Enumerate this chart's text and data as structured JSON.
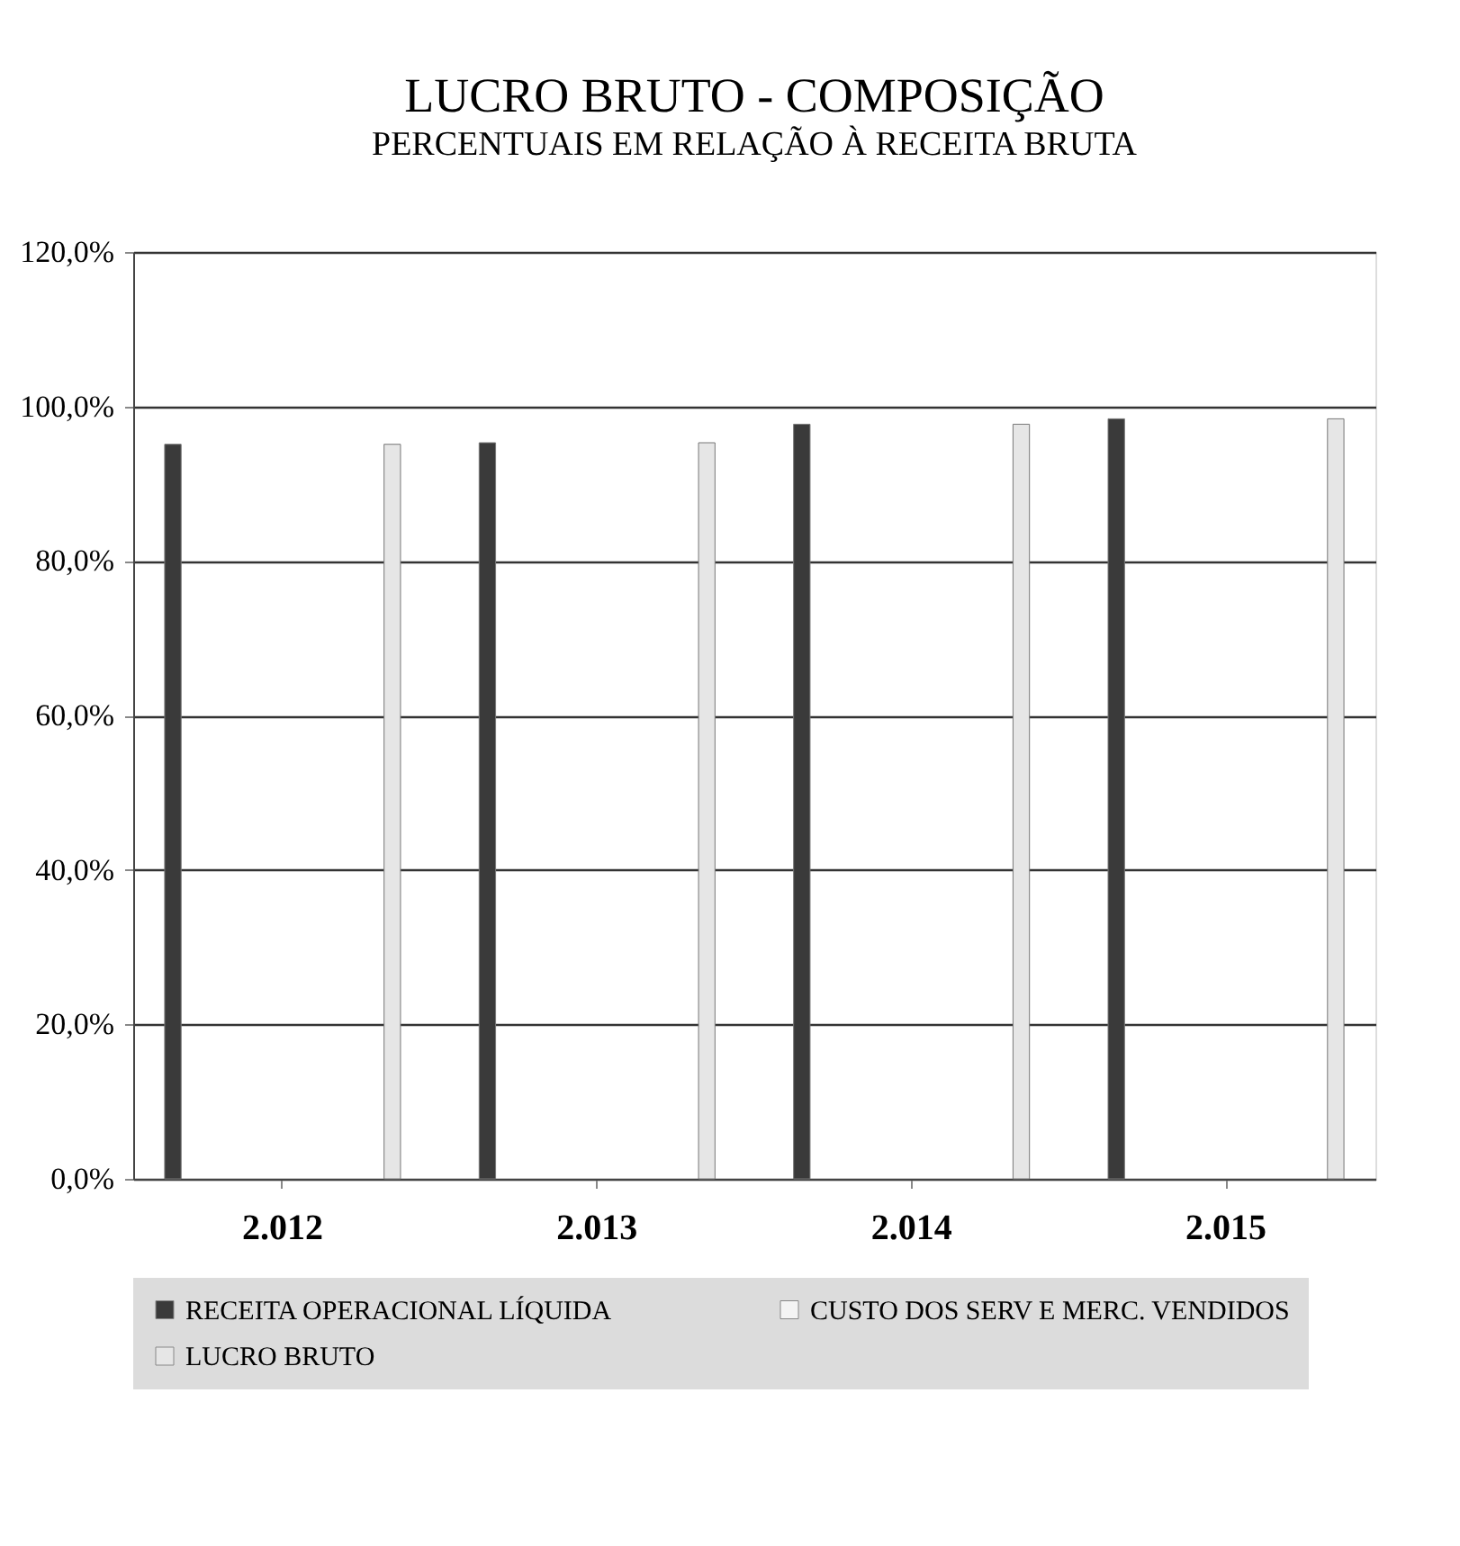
{
  "chart_data": {
    "type": "bar",
    "title": "LUCRO BRUTO - COMPOSIÇÃO",
    "subtitle": "PERCENTUAIS EM RELAÇÃO À RECEITA BRUTA",
    "categories": [
      "2.012",
      "2.013",
      "2.014",
      "2.015"
    ],
    "series": [
      {
        "name": "RECEITA OPERACIONAL LÍQUIDA",
        "color": "#3a3a3a",
        "values": [
          95.1,
          95.3,
          97.7,
          98.4
        ]
      },
      {
        "name": "CUSTO DOS SERV E MERC. VENDIDOS",
        "color": "#f4f4f4",
        "values": [
          null,
          null,
          null,
          null
        ]
      },
      {
        "name": "LUCRO BRUTO",
        "color": "#e6e6e6",
        "values": [
          95.1,
          95.3,
          97.7,
          98.4
        ]
      }
    ],
    "ylim": [
      0,
      120
    ],
    "yticks": [
      {
        "value": 0,
        "label": "0,0%"
      },
      {
        "value": 20,
        "label": "20,0%"
      },
      {
        "value": 40,
        "label": "40,0%"
      },
      {
        "value": 60,
        "label": "60,0%"
      },
      {
        "value": 80,
        "label": "80,0%"
      },
      {
        "value": 100,
        "label": "100,0%"
      },
      {
        "value": 120,
        "label": "120,0%"
      }
    ],
    "grid": "y",
    "legend": "bottom"
  }
}
